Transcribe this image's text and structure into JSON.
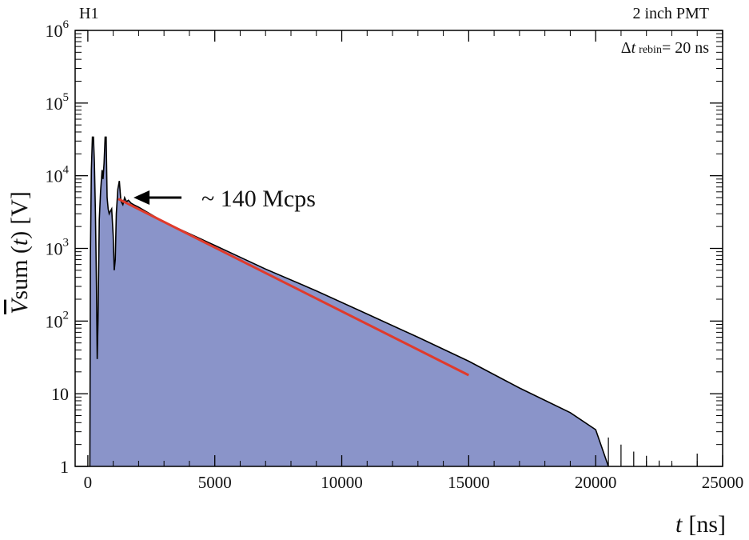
{
  "chart_data": {
    "type": "area",
    "histogram_label": "H1",
    "title": "2 inch PMT",
    "binning_label": {
      "delta": "Δ",
      "t": "t",
      "sub": "rebin",
      "value": "= 20 ns"
    },
    "xlabel": {
      "var": "t",
      "unit": "[ns]"
    },
    "ylabel": {
      "v": "V",
      "sum": "sum (",
      "t": "t",
      "close": ")",
      "unit": "[V]"
    },
    "xlim": [
      -500,
      25000
    ],
    "ylim": [
      1,
      1000000
    ],
    "yscale": "log",
    "x_ticks": [
      0,
      5000,
      10000,
      15000,
      20000,
      25000
    ],
    "x_tick_labels": [
      "0",
      "5000",
      "10000",
      "15000",
      "20000",
      "25000"
    ],
    "y_ticks": [
      {
        "base": "1",
        "exp": ""
      },
      {
        "base": "10",
        "exp": ""
      },
      {
        "base": "10",
        "exp": "2"
      },
      {
        "base": "10",
        "exp": "3"
      },
      {
        "base": "10",
        "exp": "4"
      },
      {
        "base": "10",
        "exp": "5"
      },
      {
        "base": "10",
        "exp": "6"
      }
    ],
    "annotation": "~ 140 Mcps",
    "annotation_point": [
      1800,
      5000
    ],
    "series": [
      {
        "points": [
          [
            80,
            1
          ],
          [
            100,
            800
          ],
          [
            140,
            12000
          ],
          [
            180,
            34000
          ],
          [
            220,
            34000
          ],
          [
            260,
            15000
          ],
          [
            300,
            3000
          ],
          [
            340,
            300
          ],
          [
            370,
            30
          ],
          [
            400,
            100
          ],
          [
            450,
            2500
          ],
          [
            500,
            6000
          ],
          [
            560,
            12000
          ],
          [
            600,
            9000
          ],
          [
            640,
            15000
          ],
          [
            680,
            34000
          ],
          [
            720,
            34000
          ],
          [
            760,
            5000
          ],
          [
            800,
            3500
          ],
          [
            840,
            3000
          ],
          [
            880,
            3200
          ],
          [
            940,
            3500
          ],
          [
            1000,
            1500
          ],
          [
            1040,
            500
          ],
          [
            1080,
            700
          ],
          [
            1120,
            3000
          ],
          [
            1180,
            6500
          ],
          [
            1240,
            8500
          ],
          [
            1300,
            4500
          ],
          [
            1380,
            4000
          ],
          [
            1450,
            5000
          ],
          [
            1520,
            4400
          ],
          [
            1600,
            4600
          ],
          [
            1700,
            4200
          ],
          [
            1800,
            4000
          ],
          [
            2000,
            3700
          ],
          [
            3000,
            2300
          ],
          [
            5000,
            1100
          ],
          [
            7000,
            520
          ],
          [
            9000,
            260
          ],
          [
            11000,
            125
          ],
          [
            13000,
            60
          ],
          [
            15000,
            28
          ],
          [
            17000,
            12
          ],
          [
            19000,
            5.5
          ],
          [
            20000,
            3.2
          ],
          [
            20500,
            1
          ]
        ]
      }
    ],
    "fit": {
      "x_start": 1200,
      "x_end": 15000,
      "y_start": 4800,
      "y_end": 18
    },
    "tail_points": [
      [
        20500,
        2.5
      ],
      [
        21000,
        2
      ],
      [
        21500,
        1.6
      ],
      [
        22000,
        1.4
      ],
      [
        22500,
        1.2
      ],
      [
        23000,
        1.1
      ],
      [
        24000,
        1.5
      ]
    ],
    "colors": {
      "fill": "#8a94c9",
      "outline": "#000000",
      "fit": "#e03a2b",
      "axis": "#000000"
    }
  }
}
